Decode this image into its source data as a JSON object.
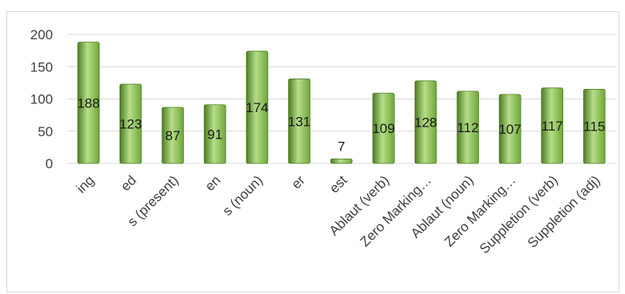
{
  "chart_data": {
    "type": "bar",
    "categories": [
      "ing",
      "ed",
      "s (present)",
      "en",
      "s (noun)",
      "er",
      "est",
      "Ablaut (verb)",
      "Zero Marking…",
      "Ablaut (noun)",
      "Zero Marking…",
      "Suppletion (verb)",
      "Suppletion (adj)"
    ],
    "values": [
      188,
      123,
      87,
      91,
      174,
      131,
      7,
      109,
      128,
      112,
      107,
      117,
      115
    ],
    "ylim": [
      0,
      200
    ],
    "yticks": [
      0,
      50,
      100,
      150,
      200
    ],
    "grid": true,
    "legend": "none",
    "bar_color": "#6fa838",
    "bar_color_light": "#b7dd8a",
    "bar_color_dark": "#4c7d22",
    "grid_color": "#d9d9d9"
  }
}
